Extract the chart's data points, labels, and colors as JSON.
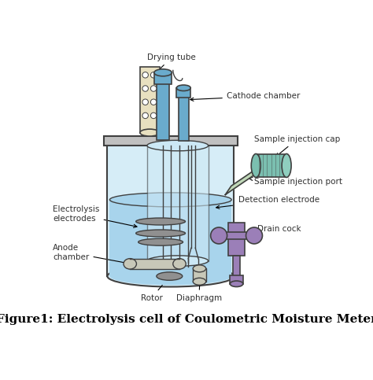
{
  "title": "Figure1: Electrolysis cell of Coulometric Moisture Meter",
  "title_fontsize": 11,
  "title_color": "#000000",
  "bg_color": "#ffffff",
  "labels": {
    "drying_tube": "Drying tube",
    "cathode_chamber": "Cathode chamber",
    "sample_injection_cap": "Sample injection cap",
    "sample_injection_port": "Sample injection port",
    "detection_electrode": "Detection electrode",
    "drain_cock": "Drain cock",
    "electrolysis_electrodes": "Electrolysis\nelectrodes",
    "anode_chamber": "Anode\nchamber",
    "rotor": "Rotor",
    "diaphragm": "Diaphragm"
  },
  "colors": {
    "vessel_outline": "#404040",
    "vessel_fill": "#d6edf7",
    "vessel_liquid": "#a8d4ec",
    "lid_fill": "#c0c0c0",
    "cathode_tube_fill": "#6aabcc",
    "drying_tube_fill": "#e8e0c0",
    "sample_cap_fill": "#7bbfb0",
    "drain_cock_fill": "#9b7fb8",
    "electrode_fill": "#909090",
    "anode_fill": "#c8c8b8",
    "inner_vessel_fill": "#b8ddf0",
    "line_color": "#404040",
    "annotation_color": "#303030",
    "bg_color": "#ffffff"
  }
}
